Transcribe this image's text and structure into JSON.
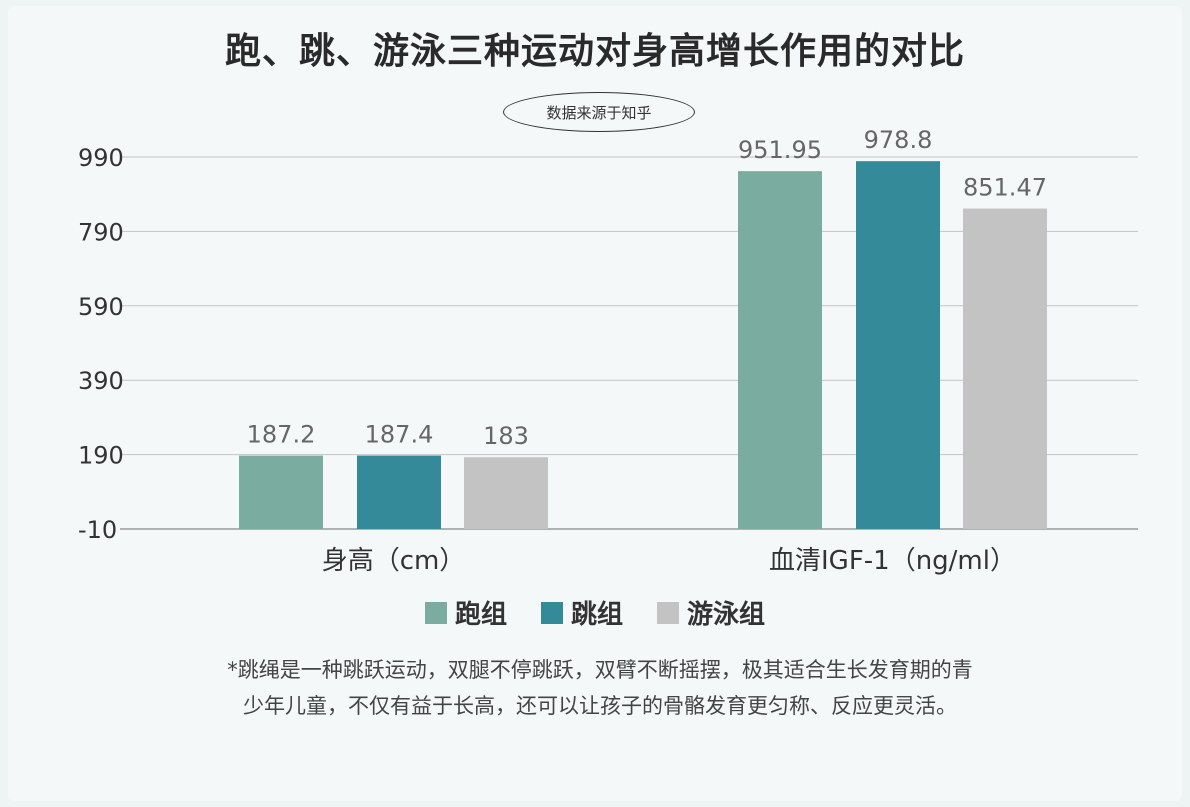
{
  "header": {
    "title": "跑、跳、游泳三种运动对身高增长作用的对比",
    "source_note": "数据来源于知乎"
  },
  "chart_data": {
    "type": "bar",
    "categories": [
      "身高（cm）",
      "血清IGF-1（ng/ml）"
    ],
    "series": [
      {
        "name": "跑组",
        "color": "#7aaca0",
        "values": [
          187.2,
          951.95
        ],
        "labels": [
          "187.2",
          "951.95"
        ]
      },
      {
        "name": "跳组",
        "color": "#348a99",
        "values": [
          187.4,
          978.8
        ],
        "labels": [
          "187.4",
          "978.8"
        ]
      },
      {
        "name": "游泳组",
        "color": "#c3c3c3",
        "values": [
          183,
          851.47
        ],
        "labels": [
          "183",
          "851.47"
        ]
      }
    ],
    "yticks": [
      -10,
      190,
      390,
      590,
      790,
      990
    ],
    "ylim": [
      -10,
      990
    ],
    "grid": true,
    "legend_position": "bottom"
  },
  "footnote": {
    "line1": "*跳绳是一种跳跃运动，双腿不停跳跃，双臂不断摇摆，极其适合生长发育期的青",
    "line2": "少年儿童，不仅有益于长高，还可以让孩子的骨骼发育更匀称、反应更灵活。"
  }
}
